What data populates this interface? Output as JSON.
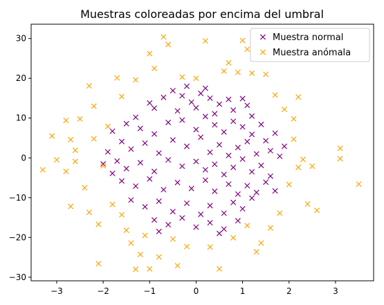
{
  "chart_data": {
    "type": "scatter",
    "title": "Muestras coloreadas por encima del umbral",
    "xlabel": "",
    "ylabel": "",
    "xlim": [
      -3.55,
      3.82
    ],
    "ylim": [
      -30.9,
      33.6
    ],
    "xticks": [
      -3,
      -2,
      -1,
      0,
      1,
      2,
      3
    ],
    "yticks": [
      -30,
      -20,
      -10,
      0,
      10,
      20,
      30
    ],
    "grid": false,
    "legend_position": "top-right",
    "marker": "x",
    "series": [
      {
        "name": "Muestra normal",
        "color": "#800080",
        "points": [
          [
            -0.9,
            12.5
          ],
          [
            -1.0,
            13.8
          ],
          [
            -0.7,
            15.2
          ],
          [
            -0.5,
            16.9
          ],
          [
            -0.3,
            15.6
          ],
          [
            -0.1,
            14.0
          ],
          [
            0.1,
            16.2
          ],
          [
            0.3,
            15.0
          ],
          [
            0.5,
            13.5
          ],
          [
            0.7,
            14.7
          ],
          [
            0.8,
            12.0
          ],
          [
            1.0,
            14.9
          ],
          [
            1.1,
            13.2
          ],
          [
            1.2,
            10.5
          ],
          [
            -1.3,
            10.2
          ],
          [
            -1.5,
            8.6
          ],
          [
            -1.2,
            7.4
          ],
          [
            -0.9,
            6.0
          ],
          [
            -0.6,
            8.9
          ],
          [
            -0.3,
            9.5
          ],
          [
            0.0,
            7.1
          ],
          [
            0.2,
            10.4
          ],
          [
            0.4,
            8.3
          ],
          [
            0.6,
            6.5
          ],
          [
            0.8,
            9.2
          ],
          [
            1.0,
            7.8
          ],
          [
            1.2,
            5.9
          ],
          [
            1.4,
            8.4
          ],
          [
            1.5,
            4.3
          ],
          [
            1.6,
            1.8
          ],
          [
            -1.6,
            4.1
          ],
          [
            -1.4,
            2.2
          ],
          [
            -1.1,
            3.7
          ],
          [
            -0.8,
            1.2
          ],
          [
            -0.5,
            4.5
          ],
          [
            -0.2,
            2.9
          ],
          [
            0.1,
            5.2
          ],
          [
            0.3,
            1.4
          ],
          [
            0.5,
            3.3
          ],
          [
            0.7,
            0.6
          ],
          [
            0.9,
            2.6
          ],
          [
            1.1,
            4.1
          ],
          [
            1.3,
            1.0
          ],
          [
            -1.7,
            -0.8
          ],
          [
            -1.5,
            -2.7
          ],
          [
            -1.2,
            -1.2
          ],
          [
            -0.9,
            -3.4
          ],
          [
            -0.6,
            -0.5
          ],
          [
            -0.3,
            -2.1
          ],
          [
            0.0,
            -0.9
          ],
          [
            0.2,
            -3.0
          ],
          [
            0.4,
            -1.6
          ],
          [
            0.6,
            -4.2
          ],
          [
            0.8,
            -2.4
          ],
          [
            1.0,
            -0.3
          ],
          [
            1.2,
            -3.5
          ],
          [
            1.4,
            -1.9
          ],
          [
            1.6,
            -4.6
          ],
          [
            -1.6,
            -5.8
          ],
          [
            -1.3,
            -7.1
          ],
          [
            -1.0,
            -5.3
          ],
          [
            -0.7,
            -8.0
          ],
          [
            -0.4,
            -6.2
          ],
          [
            -0.1,
            -7.7
          ],
          [
            0.2,
            -5.6
          ],
          [
            0.4,
            -8.4
          ],
          [
            0.7,
            -6.6
          ],
          [
            0.9,
            -9.1
          ],
          [
            1.1,
            -7.0
          ],
          [
            1.3,
            -8.7
          ],
          [
            1.5,
            -6.1
          ],
          [
            -1.4,
            -10.6
          ],
          [
            -1.1,
            -12.3
          ],
          [
            -0.8,
            -10.9
          ],
          [
            -0.5,
            -13.5
          ],
          [
            -0.2,
            -11.4
          ],
          [
            0.1,
            -14.2
          ],
          [
            0.3,
            -12.0
          ],
          [
            0.6,
            -13.9
          ],
          [
            0.8,
            -11.2
          ],
          [
            1.0,
            -12.8
          ],
          [
            1.2,
            -10.1
          ],
          [
            -0.9,
            -15.6
          ],
          [
            -0.6,
            -16.8
          ],
          [
            -0.3,
            -15.1
          ],
          [
            0.0,
            -17.4
          ],
          [
            0.3,
            -16.3
          ],
          [
            0.6,
            -17.9
          ],
          [
            0.9,
            -15.8
          ],
          [
            -0.4,
            11.8
          ],
          [
            0.0,
            12.6
          ],
          [
            0.4,
            11.1
          ],
          [
            -1.8,
            6.7
          ],
          [
            1.7,
            6.2
          ],
          [
            -1.9,
            1.5
          ],
          [
            1.8,
            0.4
          ],
          [
            -1.8,
            -3.9
          ],
          [
            1.7,
            -8.3
          ],
          [
            -0.2,
            18.0
          ],
          [
            0.2,
            17.5
          ],
          [
            -0.8,
            -18.5
          ],
          [
            0.5,
            -19.0
          ],
          [
            -2.0,
            -1.5
          ],
          [
            1.9,
            2.9
          ]
        ]
      },
      {
        "name": "Muestra anómala",
        "color": "#ffa500",
        "points": [
          [
            -3.3,
            -3.0
          ],
          [
            -3.1,
            5.5
          ],
          [
            -3.0,
            -0.5
          ],
          [
            -2.8,
            9.4
          ],
          [
            -2.8,
            -3.4
          ],
          [
            -2.7,
            4.6
          ],
          [
            -2.7,
            -12.2
          ],
          [
            -2.6,
            1.9
          ],
          [
            -2.5,
            9.8
          ],
          [
            -2.4,
            -7.5
          ],
          [
            -2.3,
            18.1
          ],
          [
            -2.3,
            -13.7
          ],
          [
            -2.2,
            13.0
          ],
          [
            -2.2,
            4.8
          ],
          [
            -2.1,
            -26.6
          ],
          [
            -2.1,
            -16.7
          ],
          [
            -2.0,
            -2.0
          ],
          [
            -1.9,
            7.9
          ],
          [
            -1.8,
            -11.7
          ],
          [
            -1.7,
            20.1
          ],
          [
            -1.6,
            15.4
          ],
          [
            -1.6,
            -14.3
          ],
          [
            -1.5,
            -18.2
          ],
          [
            -1.4,
            -21.4
          ],
          [
            -1.3,
            -28.0
          ],
          [
            -1.3,
            19.6
          ],
          [
            -1.2,
            -24.3
          ],
          [
            -1.1,
            -19.5
          ],
          [
            -1.0,
            -27.9
          ],
          [
            -1.0,
            26.2
          ],
          [
            -0.9,
            22.5
          ],
          [
            -0.8,
            -24.9
          ],
          [
            -0.7,
            30.4
          ],
          [
            -0.6,
            28.5
          ],
          [
            -0.5,
            -20.4
          ],
          [
            -0.4,
            -27.1
          ],
          [
            -0.3,
            20.3
          ],
          [
            -0.2,
            -22.3
          ],
          [
            0.0,
            20.0
          ],
          [
            0.2,
            29.4
          ],
          [
            0.3,
            -22.4
          ],
          [
            0.5,
            -27.9
          ],
          [
            0.6,
            21.8
          ],
          [
            0.7,
            23.9
          ],
          [
            0.8,
            -20.1
          ],
          [
            0.9,
            21.5
          ],
          [
            1.0,
            29.5
          ],
          [
            1.1,
            -17.0
          ],
          [
            1.1,
            27.3
          ],
          [
            1.2,
            21.3
          ],
          [
            1.3,
            -23.6
          ],
          [
            1.4,
            -21.4
          ],
          [
            1.5,
            21.0
          ],
          [
            1.6,
            -17.6
          ],
          [
            1.7,
            15.8
          ],
          [
            1.8,
            -13.9
          ],
          [
            1.9,
            12.2
          ],
          [
            2.0,
            -6.7
          ],
          [
            2.1,
            9.8
          ],
          [
            2.2,
            15.3
          ],
          [
            2.2,
            -2.4
          ],
          [
            2.3,
            -0.4
          ],
          [
            2.4,
            -11.6
          ],
          [
            2.5,
            -2.1
          ],
          [
            2.6,
            -13.2
          ],
          [
            3.1,
            2.4
          ],
          [
            3.1,
            -0.2
          ],
          [
            3.5,
            -6.6
          ],
          [
            2.1,
            4.7
          ],
          [
            -2.6,
            -0.9
          ]
        ]
      }
    ]
  }
}
